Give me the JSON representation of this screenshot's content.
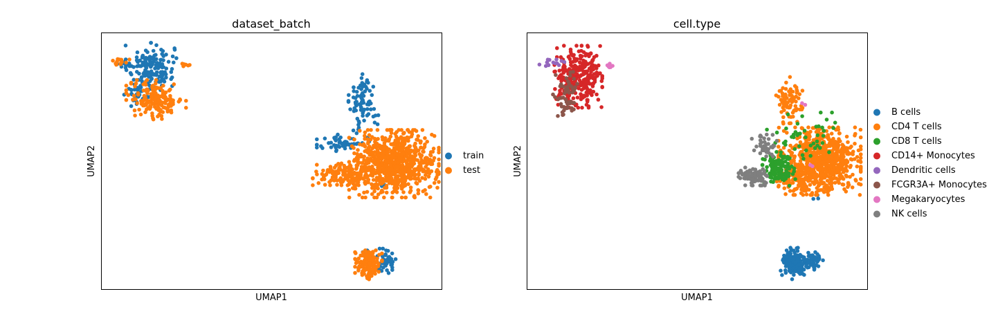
{
  "chart_data": [
    {
      "type": "scatter",
      "title": "dataset_batch",
      "xlabel": "UMAP1",
      "ylabel": "UMAP2",
      "xlim": [
        0,
        100
      ],
      "ylim": [
        0,
        100
      ],
      "ticks": false,
      "grid": false,
      "legend_position": "right",
      "series": [
        {
          "name": "train",
          "color": "#1f77b4",
          "clusters": [
            {
              "cx": 14.5,
              "cy": 87,
              "sx": 3.4,
              "sy": 4.2,
              "n": 150
            },
            {
              "cx": 11,
              "cy": 77,
              "sx": 2,
              "sy": 2.5,
              "n": 40
            },
            {
              "cx": 7,
              "cy": 88,
              "sx": 1.6,
              "sy": 0.9,
              "n": 12
            },
            {
              "cx": 77,
              "cy": 73,
              "sx": 2,
              "sy": 5,
              "n": 80
            },
            {
              "cx": 71,
              "cy": 57,
              "sx": 3.5,
              "sy": 2,
              "n": 55
            },
            {
              "cx": 83.5,
              "cy": 11,
              "sx": 1.6,
              "sy": 2.2,
              "n": 50
            },
            {
              "cx": 78,
              "cy": 14,
              "sx": 1,
              "sy": 1,
              "n": 8
            },
            {
              "cx": 83.5,
              "cy": 41,
              "sx": 0.8,
              "sy": 0.6,
              "n": 4
            }
          ]
        },
        {
          "name": "test",
          "color": "#ff7f0e",
          "clusters": [
            {
              "cx": 16,
              "cy": 74,
              "sx": 4,
              "sy": 3.5,
              "n": 170
            },
            {
              "cx": 5.5,
              "cy": 89,
              "sx": 1.2,
              "sy": 0.7,
              "n": 14
            },
            {
              "cx": 24.5,
              "cy": 87.5,
              "sx": 0.8,
              "sy": 0.6,
              "n": 6
            },
            {
              "cx": 86,
              "cy": 49,
              "sx": 6,
              "sy": 6,
              "n": 820
            },
            {
              "cx": 72,
              "cy": 45,
              "sx": 4.5,
              "sy": 2,
              "n": 130
            },
            {
              "cx": 78.5,
              "cy": 10,
              "sx": 1.8,
              "sy": 2.8,
              "n": 160
            }
          ]
        }
      ]
    },
    {
      "type": "scatter",
      "title": "cell.type",
      "xlabel": "UMAP1",
      "ylabel": "UMAP2",
      "xlim": [
        0,
        100
      ],
      "ylim": [
        0,
        100
      ],
      "ticks": false,
      "grid": false,
      "legend_position": "right",
      "series": [
        {
          "name": "B cells",
          "color": "#1f77b4",
          "clusters": [
            {
              "cx": 78.5,
              "cy": 10,
              "sx": 1.8,
              "sy": 2.8,
              "n": 170
            },
            {
              "cx": 84.5,
              "cy": 11,
              "sx": 1.4,
              "sy": 2,
              "n": 45
            },
            {
              "cx": 85,
              "cy": 36,
              "sx": 0.5,
              "sy": 0.8,
              "n": 3
            }
          ]
        },
        {
          "name": "CD4 T cells",
          "color": "#ff7f0e",
          "clusters": [
            {
              "cx": 86,
              "cy": 50,
              "sx": 5.5,
              "sy": 6,
              "n": 780
            },
            {
              "cx": 77,
              "cy": 73,
              "sx": 1.8,
              "sy": 4.5,
              "n": 80
            },
            {
              "cx": 80,
              "cy": 43,
              "sx": 3,
              "sy": 2.5,
              "n": 60
            }
          ]
        },
        {
          "name": "CD8 T cells",
          "color": "#2ca02c",
          "clusters": [
            {
              "cx": 74,
              "cy": 47,
              "sx": 2.2,
              "sy": 3,
              "n": 110
            },
            {
              "cx": 80,
              "cy": 58,
              "sx": 5,
              "sy": 5,
              "n": 50
            }
          ]
        },
        {
          "name": "CD14+ Monocytes",
          "color": "#d62728",
          "clusters": [
            {
              "cx": 15,
              "cy": 83,
              "sx": 3.2,
              "sy": 5.5,
              "n": 300
            }
          ]
        },
        {
          "name": "Dendritic cells",
          "color": "#9467bd",
          "clusters": [
            {
              "cx": 7.5,
              "cy": 88.5,
              "sx": 1.8,
              "sy": 0.8,
              "n": 14
            }
          ]
        },
        {
          "name": "FCGR3A+ Monocytes",
          "color": "#8c564b",
          "clusters": [
            {
              "cx": 11.5,
              "cy": 75,
              "sx": 1.8,
              "sy": 4.5,
              "n": 60
            }
          ]
        },
        {
          "name": "Megakaryocytes",
          "color": "#e377c2",
          "clusters": [
            {
              "cx": 24.5,
              "cy": 87.5,
              "sx": 0.8,
              "sy": 0.5,
              "n": 6
            },
            {
              "cx": 81,
              "cy": 73,
              "sx": 0.5,
              "sy": 0.5,
              "n": 2
            },
            {
              "cx": 84,
              "cy": 48,
              "sx": 0.5,
              "sy": 0.5,
              "n": 2
            }
          ]
        },
        {
          "name": "NK cells",
          "color": "#7f7f7f",
          "clusters": [
            {
              "cx": 67,
              "cy": 44,
              "sx": 2.2,
              "sy": 1.6,
              "n": 90
            },
            {
              "cx": 70,
              "cy": 56,
              "sx": 1.8,
              "sy": 2,
              "n": 40
            }
          ]
        }
      ]
    }
  ]
}
